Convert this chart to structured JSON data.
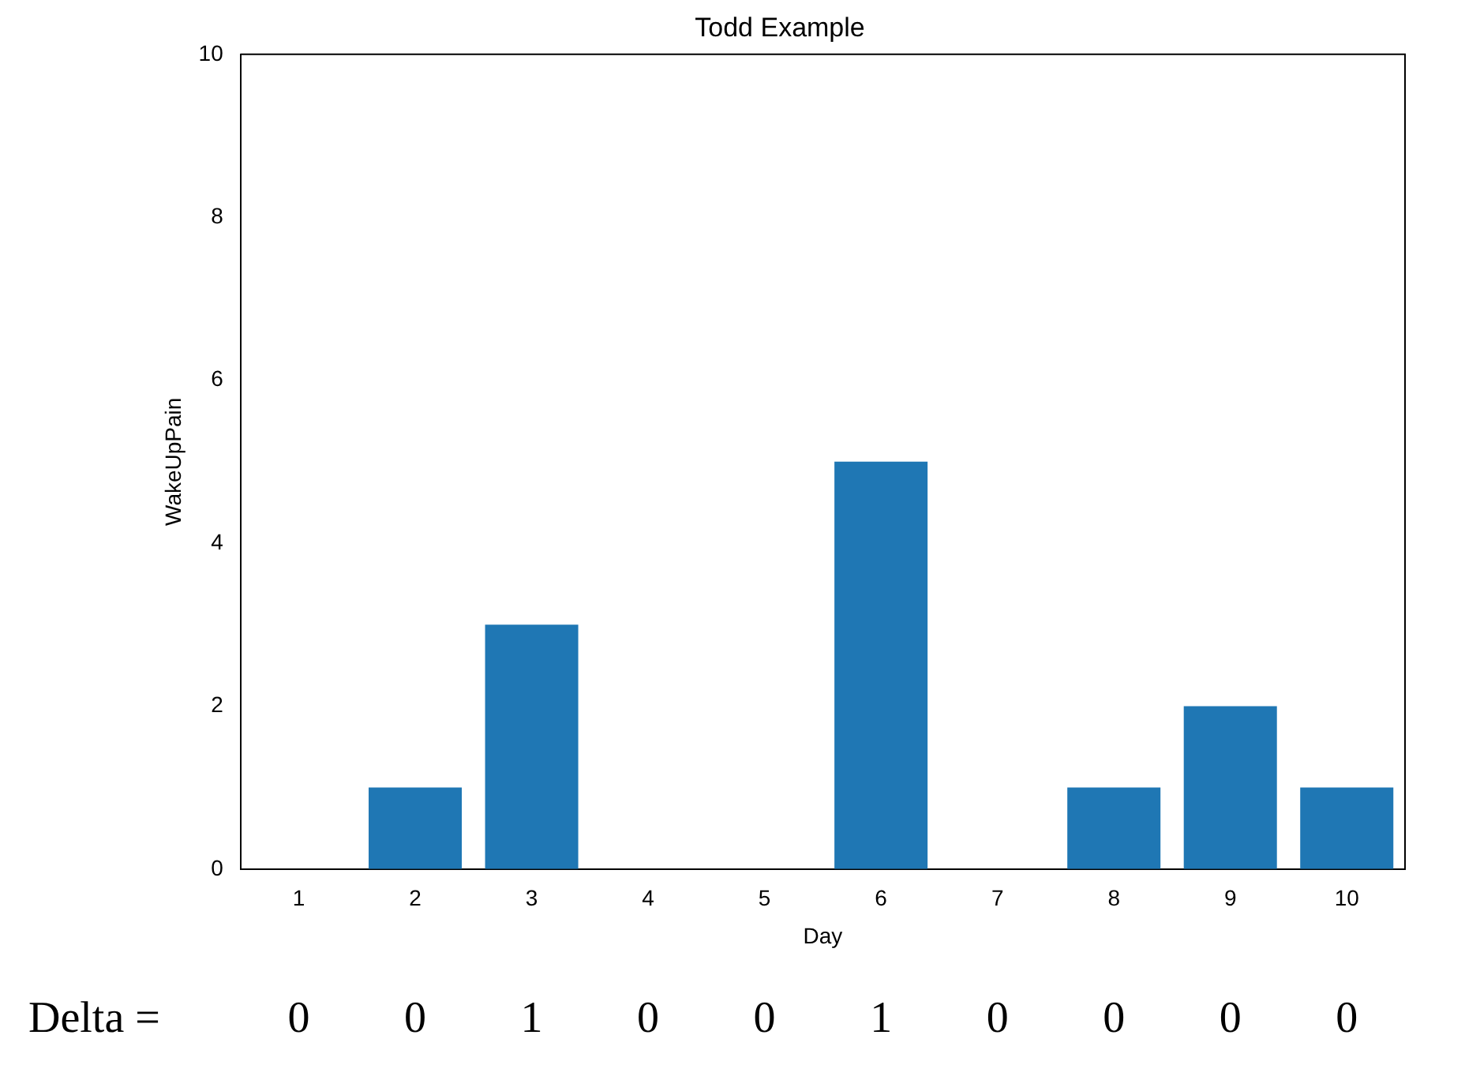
{
  "chart_data": {
    "type": "bar",
    "title": "Todd Example",
    "xlabel": "Day",
    "ylabel": "WakeUpPain",
    "categories": [
      "1",
      "2",
      "3",
      "4",
      "5",
      "6",
      "7",
      "8",
      "9",
      "10"
    ],
    "values": [
      0,
      1,
      3,
      0,
      0,
      5,
      0,
      1,
      2,
      1
    ],
    "color": "#1f77b4",
    "ylim": [
      0,
      10
    ],
    "yticks": [
      0,
      2,
      4,
      6,
      8,
      10
    ],
    "grid": false,
    "legend": false,
    "annotations": [
      "Delta =",
      "0",
      "0",
      "1",
      "0",
      "0",
      "1",
      "0",
      "0",
      "0",
      "0"
    ]
  }
}
